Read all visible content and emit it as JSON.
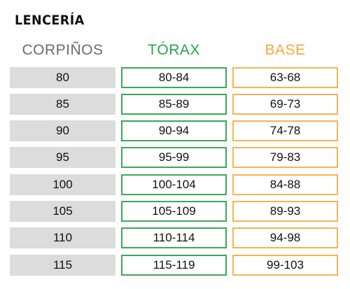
{
  "title": "LENCERÍA",
  "headers": {
    "col1": "CORPIÑOS",
    "col2": "TÓRAX",
    "col3": "BASE"
  },
  "colors": {
    "col1_header": "#6b6b6b",
    "col2_accent": "#27a348",
    "col3_accent": "#f5a93a",
    "col1_fill": "#dcdcdc"
  },
  "rows": [
    {
      "corpino": "80",
      "torax": "80-84",
      "base": "63-68"
    },
    {
      "corpino": "85",
      "torax": "85-89",
      "base": "69-73"
    },
    {
      "corpino": "90",
      "torax": "90-94",
      "base": "74-78"
    },
    {
      "corpino": "95",
      "torax": "95-99",
      "base": "79-83"
    },
    {
      "corpino": "100",
      "torax": "100-104",
      "base": "84-88"
    },
    {
      "corpino": "105",
      "torax": "105-109",
      "base": "89-93"
    },
    {
      "corpino": "110",
      "torax": "110-114",
      "base": "94-98"
    },
    {
      "corpino": "115",
      "torax": "115-119",
      "base": "99-103"
    }
  ]
}
